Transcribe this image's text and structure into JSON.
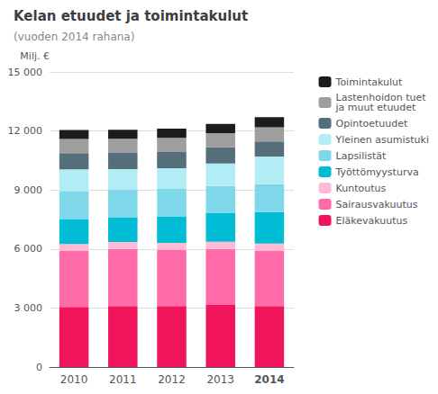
{
  "chart_data": {
    "type": "bar",
    "title": "Kelan etuudet ja toimintakulut",
    "subtitle": "(vuoden 2014 rahana)",
    "ylabel": "Milj. €",
    "categories": [
      "2010",
      "2011",
      "2012",
      "2013",
      "2014"
    ],
    "series": [
      {
        "name": "Eläkevakuutus",
        "color": "#F0145A",
        "values": [
          3050,
          3100,
          3100,
          3150,
          3100
        ]
      },
      {
        "name": "Sairausvakuutus",
        "color": "#FF6BA8",
        "values": [
          2850,
          2900,
          2850,
          2850,
          2800
        ]
      },
      {
        "name": "Kuntoutus",
        "color": "#FFBBD4",
        "values": [
          350,
          360,
          360,
          370,
          380
        ]
      },
      {
        "name": "Työttömyysturva",
        "color": "#00BCD4",
        "values": [
          1250,
          1250,
          1350,
          1450,
          1600
        ]
      },
      {
        "name": "Lapsilistät",
        "color": "#7FD8EA",
        "values": [
          1450,
          1400,
          1400,
          1380,
          1420
        ]
      },
      {
        "name": "Yleinen asumistuki",
        "color": "#B2ECF5",
        "values": [
          1100,
          1050,
          1050,
          1150,
          1400
        ]
      },
      {
        "name": "Opintoetuudet",
        "color": "#546E7A",
        "values": [
          820,
          820,
          820,
          820,
          770
        ]
      },
      {
        "name": "Lastenhoidon tuet\nja muut etuudet",
        "color": "#9E9E9E",
        "values": [
          720,
          720,
          720,
          720,
          720
        ]
      },
      {
        "name": "Toimintakulut",
        "color": "#1C1C1C",
        "values": [
          460,
          460,
          470,
          470,
          510
        ]
      }
    ],
    "ylim": [
      0,
      15000
    ],
    "yticks": [
      0,
      {
        "value": 3000,
        "label": "3 000"
      },
      {
        "value": 6000,
        "label": "6 000"
      },
      {
        "value": 9000,
        "label": "9 000"
      },
      {
        "value": 12000,
        "label": "12 000"
      },
      {
        "value": 15000,
        "label": "15 000"
      }
    ],
    "grid": true,
    "stacked": true,
    "legend": "right"
  }
}
